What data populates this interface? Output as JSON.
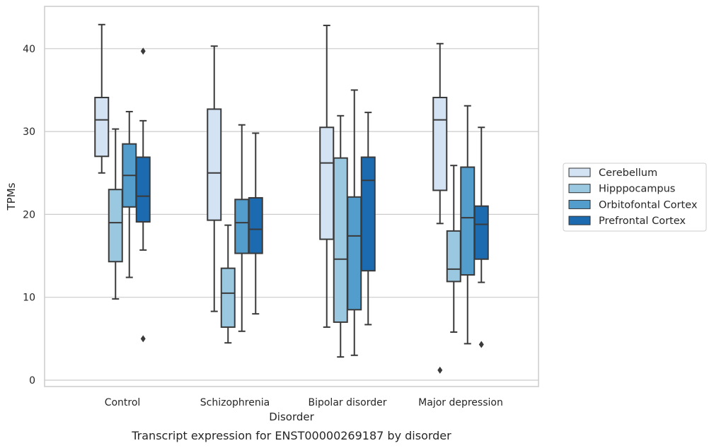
{
  "chart_data": {
    "type": "box",
    "categories": [
      "Control",
      "Schizophrenia",
      "Bipolar disorder",
      "Major depression"
    ],
    "xlabel": "Disorder",
    "ylabel": "TPMs",
    "caption": "Transcript expression for ENST00000269187 by disorder",
    "ylim": [
      -0.9,
      45
    ],
    "yticks": [
      0,
      10,
      20,
      30,
      40
    ],
    "grid": "horizontal",
    "legend_position": "right",
    "series": [
      {
        "name": "Cerebellum",
        "color": "#d3e3f3",
        "boxes": [
          {
            "whisker_low": 25.0,
            "q1": 27.0,
            "median": 31.4,
            "q3": 34.1,
            "whisker_high": 42.9,
            "outliers": []
          },
          {
            "whisker_low": 8.3,
            "q1": 19.3,
            "median": 25.0,
            "q3": 32.7,
            "whisker_high": 40.3,
            "outliers": []
          },
          {
            "whisker_low": 6.4,
            "q1": 17.0,
            "median": 26.2,
            "q3": 30.5,
            "whisker_high": 42.8,
            "outliers": []
          },
          {
            "whisker_low": 18.9,
            "q1": 22.9,
            "median": 31.4,
            "q3": 34.1,
            "whisker_high": 40.6,
            "outliers": [
              1.2
            ]
          }
        ]
      },
      {
        "name": "Hipppocampus",
        "color": "#9ac8e0",
        "boxes": [
          {
            "whisker_low": 9.8,
            "q1": 14.3,
            "median": 19.0,
            "q3": 23.0,
            "whisker_high": 30.3,
            "outliers": []
          },
          {
            "whisker_low": 4.5,
            "q1": 6.4,
            "median": 10.5,
            "q3": 13.5,
            "whisker_high": 18.7,
            "outliers": []
          },
          {
            "whisker_low": 2.8,
            "q1": 7.0,
            "median": 14.6,
            "q3": 26.8,
            "whisker_high": 31.9,
            "outliers": []
          },
          {
            "whisker_low": 5.8,
            "q1": 11.9,
            "median": 13.4,
            "q3": 18.0,
            "whisker_high": 25.9,
            "outliers": []
          }
        ]
      },
      {
        "name": "Orbitofontal Cortex",
        "color": "#529dcc",
        "boxes": [
          {
            "whisker_low": 12.4,
            "q1": 20.9,
            "median": 24.7,
            "q3": 28.5,
            "whisker_high": 32.4,
            "outliers": []
          },
          {
            "whisker_low": 5.9,
            "q1": 15.3,
            "median": 19.0,
            "q3": 21.8,
            "whisker_high": 30.8,
            "outliers": []
          },
          {
            "whisker_low": 3.0,
            "q1": 8.5,
            "median": 17.4,
            "q3": 22.1,
            "whisker_high": 35.0,
            "outliers": []
          },
          {
            "whisker_low": 4.4,
            "q1": 12.7,
            "median": 19.6,
            "q3": 25.7,
            "whisker_high": 33.1,
            "outliers": []
          }
        ]
      },
      {
        "name": "Prefrontal Cortex",
        "color": "#1c6aaf",
        "boxes": [
          {
            "whisker_low": 15.7,
            "q1": 19.1,
            "median": 22.2,
            "q3": 26.9,
            "whisker_high": 31.3,
            "outliers": [
              5.0,
              39.7
            ]
          },
          {
            "whisker_low": 8.0,
            "q1": 15.3,
            "median": 18.2,
            "q3": 22.0,
            "whisker_high": 29.8,
            "outliers": []
          },
          {
            "whisker_low": 6.7,
            "q1": 13.2,
            "median": 24.1,
            "q3": 26.9,
            "whisker_high": 32.3,
            "outliers": []
          },
          {
            "whisker_low": 11.8,
            "q1": 14.6,
            "median": 18.8,
            "q3": 21.0,
            "whisker_high": 30.5,
            "outliers": [
              4.3
            ]
          }
        ]
      }
    ]
  },
  "colors": {
    "grid": "#cccccc",
    "frame": "#cccccc",
    "box_edge": "#3a3a3a",
    "text": "#262626"
  }
}
